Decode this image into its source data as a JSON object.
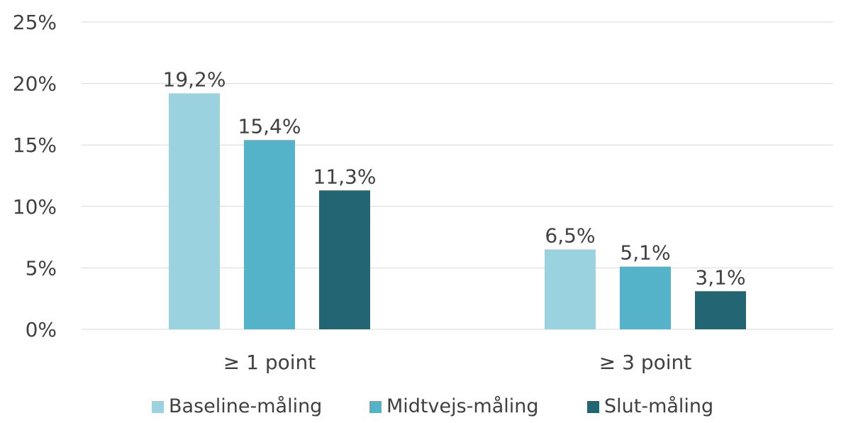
{
  "chart_data": {
    "type": "bar",
    "categories": [
      "≥ 1 point",
      "≥ 3 point"
    ],
    "series": [
      {
        "name": "Baseline-måling",
        "values": [
          19.2,
          6.5
        ],
        "labels": [
          "19,2%",
          "6,5%"
        ],
        "color": "#9ad3df"
      },
      {
        "name": "Midtvejs-måling",
        "values": [
          15.4,
          5.1
        ],
        "labels": [
          "15,4%",
          "5,1%"
        ],
        "color": "#54b2c9"
      },
      {
        "name": "Slut-måling",
        "values": [
          11.3,
          3.1
        ],
        "labels": [
          "11,3%",
          "3,1%"
        ],
        "color": "#246574"
      }
    ],
    "yticks": [
      "0%",
      "5%",
      "10%",
      "15%",
      "20%",
      "25%"
    ],
    "ylim": [
      0,
      25
    ],
    "grid": true,
    "legend_position": "bottom",
    "title": "",
    "xlabel": "",
    "ylabel": ""
  }
}
